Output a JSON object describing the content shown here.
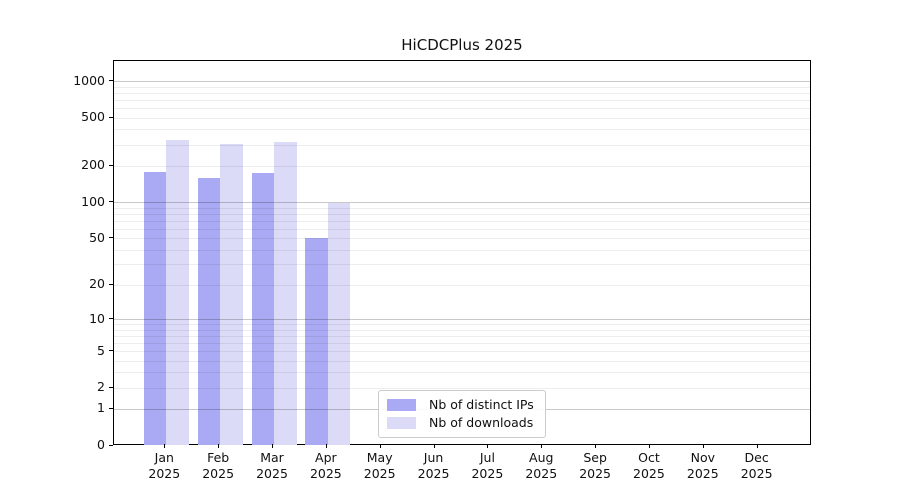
{
  "chart_data": {
    "type": "bar",
    "title": "HiCDCPlus 2025",
    "categories": [
      "Jan 2025",
      "Feb 2025",
      "Mar 2025",
      "Apr 2025",
      "May 2025",
      "Jun 2025",
      "Jul 2025",
      "Aug 2025",
      "Sep 2025",
      "Oct 2025",
      "Nov 2025",
      "Dec 2025"
    ],
    "series": [
      {
        "name": "Nb of distinct IPs",
        "color": "#a9a9f4",
        "values": [
          177,
          160,
          175,
          50,
          0,
          0,
          0,
          0,
          0,
          0,
          0,
          0
        ]
      },
      {
        "name": "Nb of downloads",
        "color": "#dbdbf8",
        "values": [
          330,
          305,
          318,
          98,
          0,
          0,
          0,
          0,
          0,
          0,
          0,
          0
        ]
      }
    ],
    "xlabel": "",
    "ylabel": "",
    "yscale": "log10(value+1)",
    "ylim": [
      0,
      1430
    ],
    "ytick_labels": [
      0,
      1,
      2,
      5,
      10,
      20,
      50,
      100,
      200,
      500,
      1000
    ],
    "major_gridlines": [
      1,
      10,
      100,
      1000
    ],
    "minor_gridlines": [
      2,
      3,
      4,
      5,
      6,
      7,
      8,
      9,
      20,
      30,
      40,
      50,
      60,
      70,
      80,
      90,
      200,
      300,
      400,
      500,
      600,
      700,
      800,
      900
    ],
    "grid": true,
    "legend_position": "lower center inside axes"
  },
  "colors": {
    "background": "#ffffff",
    "axis": "#000000",
    "major_gridline": "#c9c9c9",
    "minor_gridline": "#ededed",
    "legend_border": "#cccccc",
    "distinct_ips_bar": "#a9a9f4",
    "downloads_bar": "#dbdbf8"
  }
}
